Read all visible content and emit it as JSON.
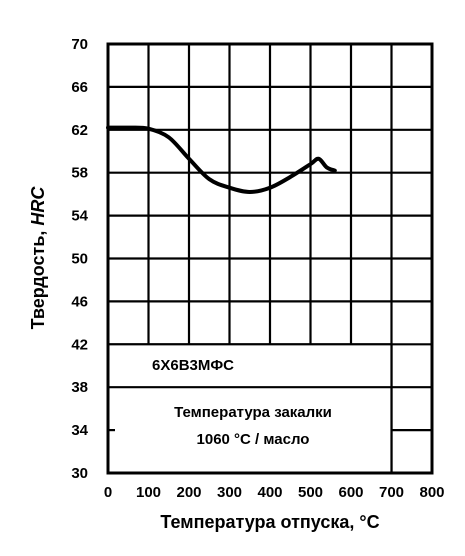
{
  "chart_data": {
    "type": "line",
    "title": "",
    "xlabel": "Температура отпуска, °C",
    "ylabel_prefix": "Твердость, ",
    "ylabel_unit": "HRC",
    "xlim": [
      0,
      800
    ],
    "ylim": [
      30,
      70
    ],
    "x_ticks": [
      0,
      100,
      200,
      300,
      400,
      500,
      600,
      700,
      800
    ],
    "x_tick_labels": [
      "0",
      "100",
      "200",
      "300",
      "400",
      "500",
      "600",
      "700",
      "800"
    ],
    "y_ticks": [
      30,
      34,
      38,
      42,
      46,
      50,
      54,
      58,
      62,
      66,
      70
    ],
    "y_tick_labels": [
      "30",
      "34",
      "38",
      "42",
      "46",
      "50",
      "54",
      "58",
      "62",
      "66",
      "70"
    ],
    "grid": true,
    "line_color": "#000000",
    "series": [
      {
        "name": "6Х6В3МФС",
        "x": [
          0,
          50,
          100,
          150,
          200,
          250,
          300,
          350,
          400,
          450,
          500,
          520,
          540,
          560
        ],
        "y": [
          62.2,
          62.2,
          62.1,
          61.3,
          59.3,
          57.4,
          56.6,
          56.2,
          56.6,
          57.6,
          58.8,
          59.3,
          58.5,
          58.2
        ]
      }
    ],
    "annotations": {
      "steel_label": "6Х6В3МФС",
      "quench_line1": "Температура закалки",
      "quench_line2": "1060 °С / масло"
    }
  }
}
